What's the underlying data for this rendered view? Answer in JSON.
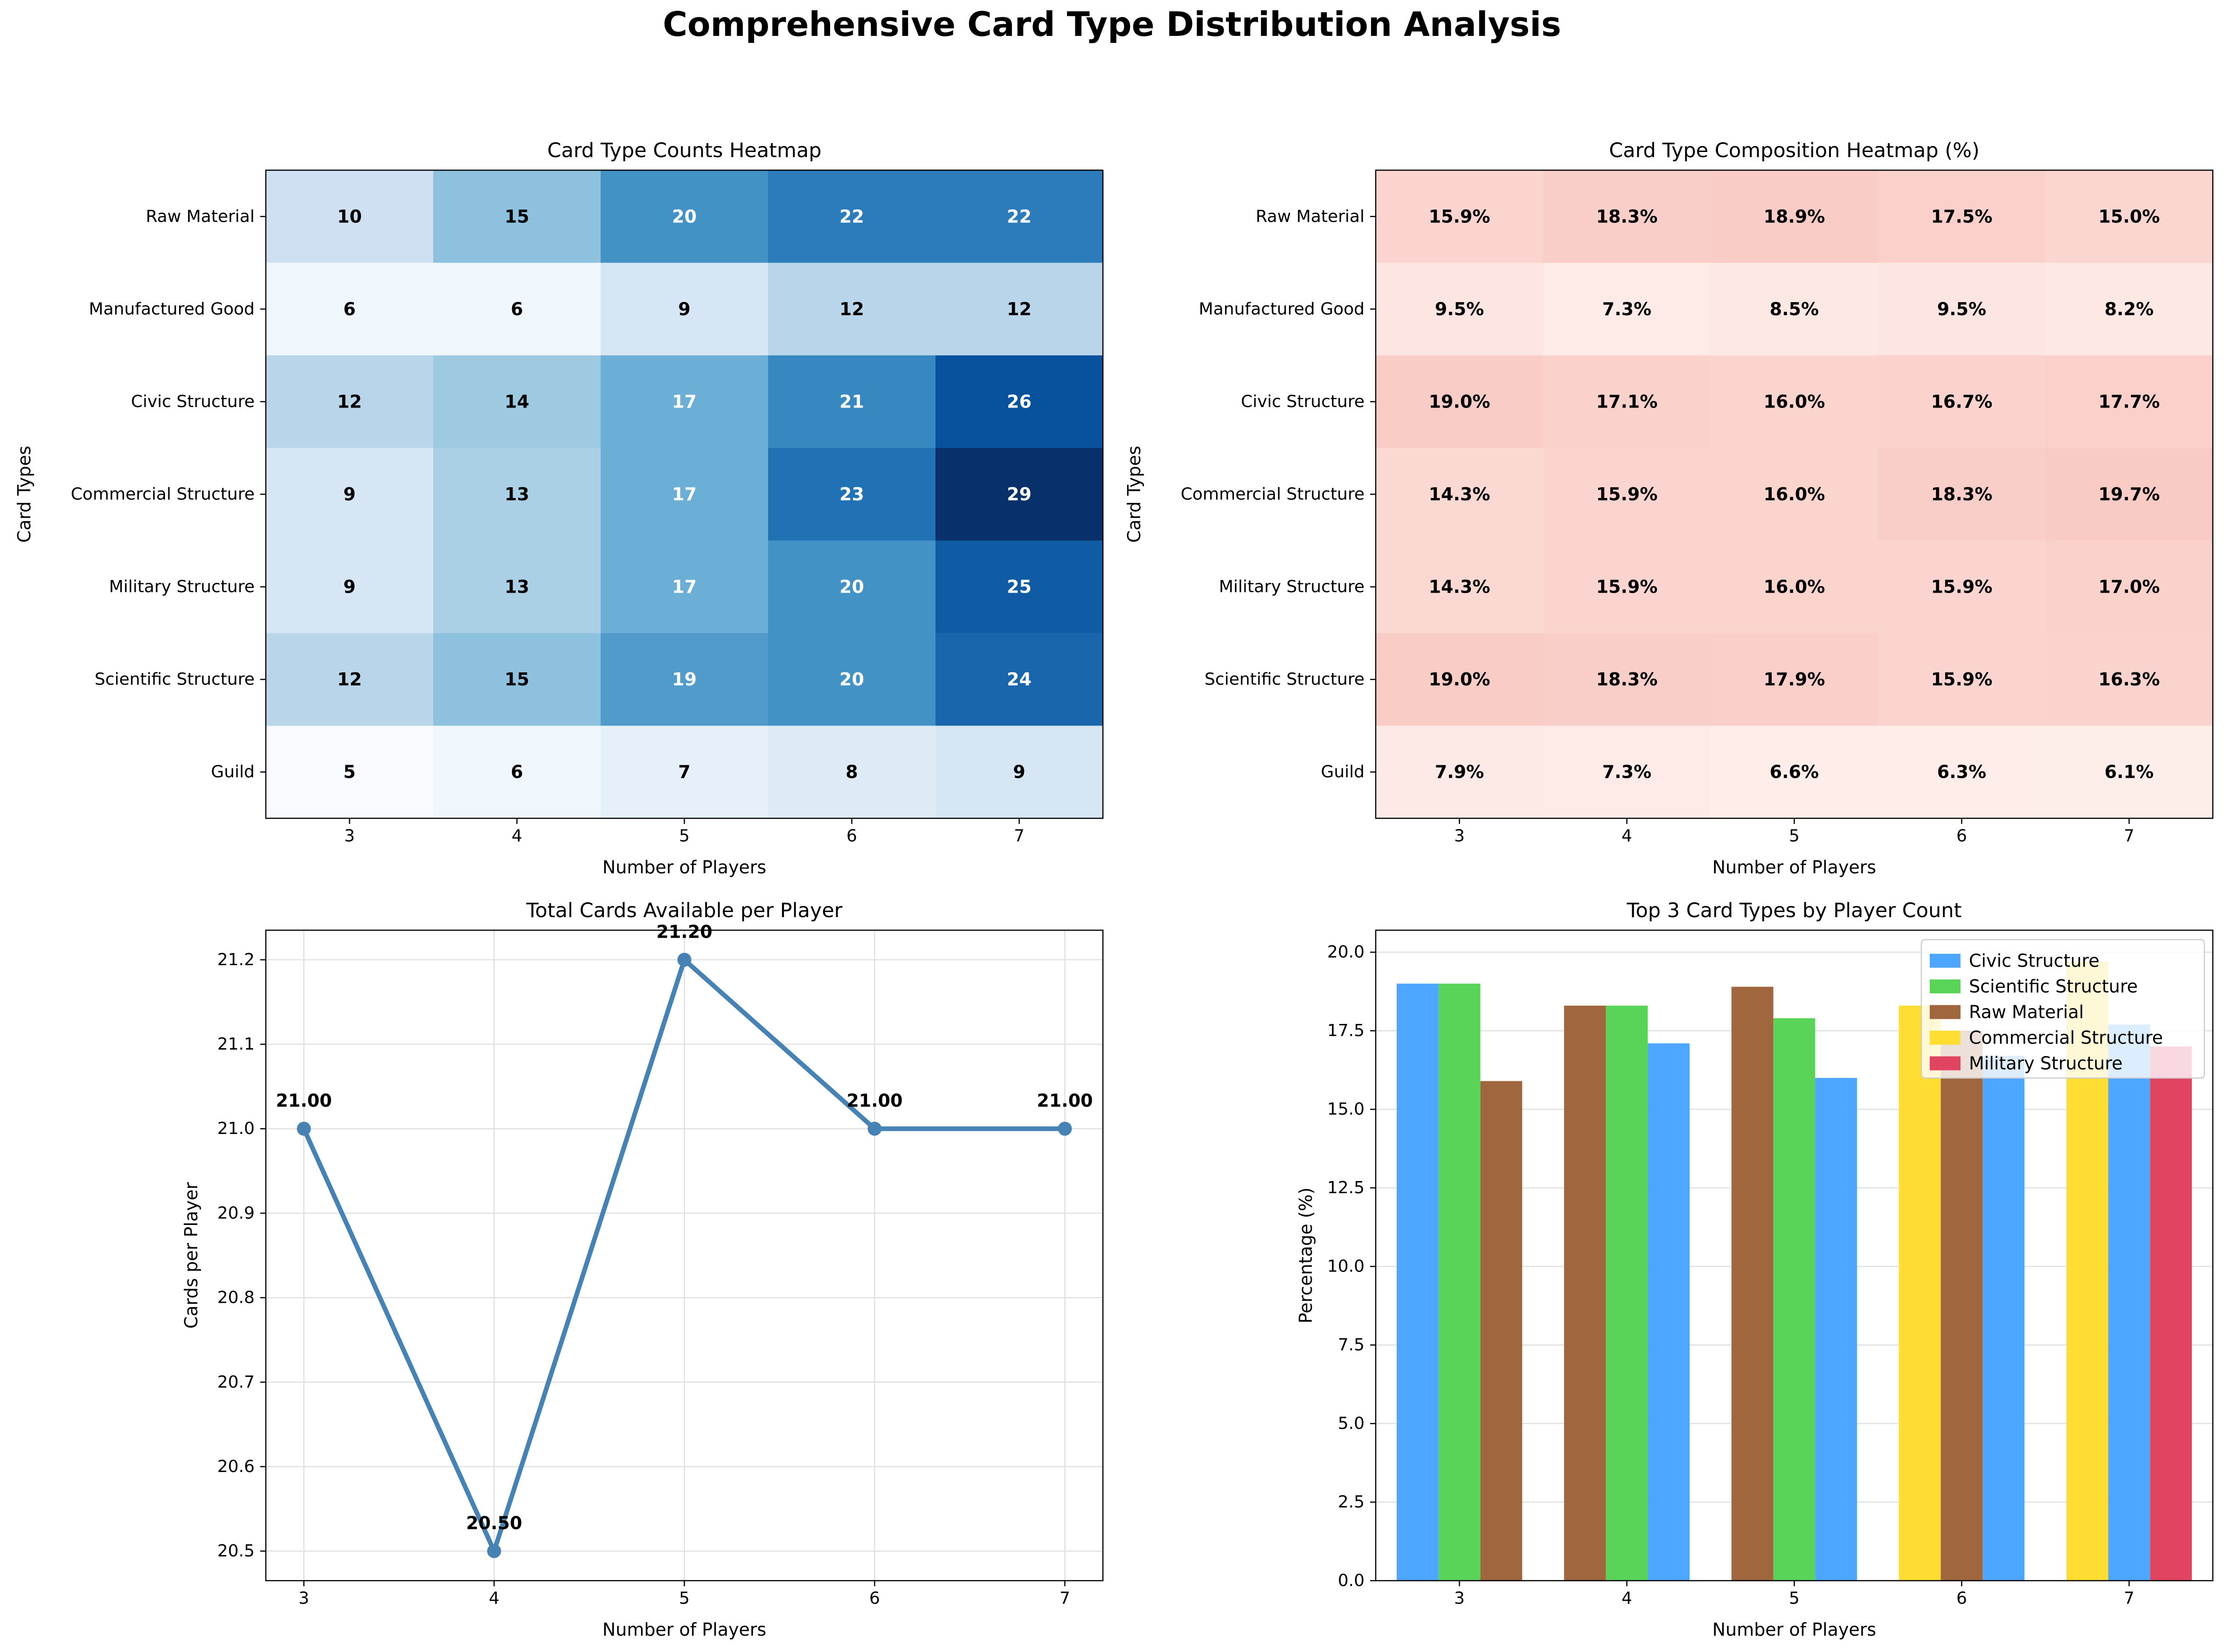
{
  "suptitle": "Comprehensive Card Type Distribution Analysis",
  "chart_data": [
    {
      "type": "heatmap",
      "title": "Card Type Counts Heatmap",
      "xlabel": "Number of Players",
      "ylabel": "Card Types",
      "x": [
        3,
        4,
        5,
        6,
        7
      ],
      "rows": [
        "Raw Material",
        "Manufactured Good",
        "Civic Structure",
        "Commercial Structure",
        "Military Structure",
        "Scientific Structure",
        "Guild"
      ],
      "values": [
        [
          10,
          15,
          20,
          22,
          22
        ],
        [
          6,
          6,
          9,
          12,
          12
        ],
        [
          12,
          14,
          17,
          21,
          26
        ],
        [
          9,
          13,
          17,
          23,
          29
        ],
        [
          9,
          13,
          17,
          20,
          25
        ],
        [
          12,
          15,
          19,
          20,
          24
        ],
        [
          5,
          6,
          7,
          8,
          9
        ]
      ],
      "colormap": "Blues"
    },
    {
      "type": "heatmap",
      "title": "Card Type Composition Heatmap (%)",
      "xlabel": "Number of Players",
      "ylabel": "Card Types",
      "x": [
        3,
        4,
        5,
        6,
        7
      ],
      "rows": [
        "Raw Material",
        "Manufactured Good",
        "Civic Structure",
        "Commercial Structure",
        "Military Structure",
        "Scientific Structure",
        "Guild"
      ],
      "values": [
        [
          15.9,
          18.3,
          18.9,
          17.5,
          15.0
        ],
        [
          9.5,
          7.3,
          8.5,
          9.5,
          8.2
        ],
        [
          19.0,
          17.1,
          16.0,
          16.7,
          17.7
        ],
        [
          14.3,
          15.9,
          16.0,
          18.3,
          19.7
        ],
        [
          14.3,
          15.9,
          16.0,
          15.9,
          17.0
        ],
        [
          19.0,
          18.3,
          17.9,
          15.9,
          16.3
        ],
        [
          7.9,
          7.3,
          6.6,
          6.3,
          6.1
        ]
      ],
      "value_suffix": "%",
      "colormap": "Reds (light)"
    },
    {
      "type": "line",
      "title": "Total Cards Available per Player",
      "xlabel": "Number of Players",
      "ylabel": "Cards per Player",
      "x": [
        3,
        4,
        5,
        6,
        7
      ],
      "values": [
        21.0,
        20.5,
        21.2,
        21.0,
        21.0
      ],
      "data_labels": [
        "21.00",
        "20.50",
        "21.20",
        "21.00",
        "21.00"
      ],
      "ylim": [
        20.465,
        21.235
      ],
      "yticks": [
        "20.5",
        "20.6",
        "20.7",
        "20.8",
        "20.9",
        "21.0",
        "21.1",
        "21.2"
      ],
      "grid": true,
      "color": "#4682b4"
    },
    {
      "type": "bar",
      "title": "Top 3 Card Types by Player Count",
      "xlabel": "Number of Players",
      "ylabel": "Percentage (%)",
      "categories": [
        3,
        4,
        5,
        6,
        7
      ],
      "ylim": [
        0,
        20.7
      ],
      "yticks": [
        "0.0",
        "2.5",
        "5.0",
        "7.5",
        "10.0",
        "12.5",
        "15.0",
        "17.5",
        "20.0"
      ],
      "legend_position": "top-right",
      "legend": [
        {
          "label": "Civic Structure",
          "color": "#4da6ff"
        },
        {
          "label": "Scientific Structure",
          "color": "#59d459"
        },
        {
          "label": "Raw Material",
          "color": "#a0673f"
        },
        {
          "label": "Commercial Structure",
          "color": "#ffdd33"
        },
        {
          "label": "Military Structure",
          "color": "#e04461"
        }
      ],
      "groups": [
        {
          "x": 3,
          "bars": [
            {
              "type": "Civic Structure",
              "value": 19.0
            },
            {
              "type": "Scientific Structure",
              "value": 19.0
            },
            {
              "type": "Raw Material",
              "value": 15.9
            }
          ]
        },
        {
          "x": 4,
          "bars": [
            {
              "type": "Raw Material",
              "value": 18.3
            },
            {
              "type": "Scientific Structure",
              "value": 18.3
            },
            {
              "type": "Civic Structure",
              "value": 17.1
            }
          ]
        },
        {
          "x": 5,
          "bars": [
            {
              "type": "Raw Material",
              "value": 18.9
            },
            {
              "type": "Scientific Structure",
              "value": 17.9
            },
            {
              "type": "Civic Structure",
              "value": 16.0
            }
          ]
        },
        {
          "x": 6,
          "bars": [
            {
              "type": "Commercial Structure",
              "value": 18.3
            },
            {
              "type": "Raw Material",
              "value": 17.5
            },
            {
              "type": "Civic Structure",
              "value": 16.7
            }
          ]
        },
        {
          "x": 7,
          "bars": [
            {
              "type": "Commercial Structure",
              "value": 19.7
            },
            {
              "type": "Civic Structure",
              "value": 17.7
            },
            {
              "type": "Military Structure",
              "value": 17.0
            }
          ]
        }
      ]
    }
  ]
}
